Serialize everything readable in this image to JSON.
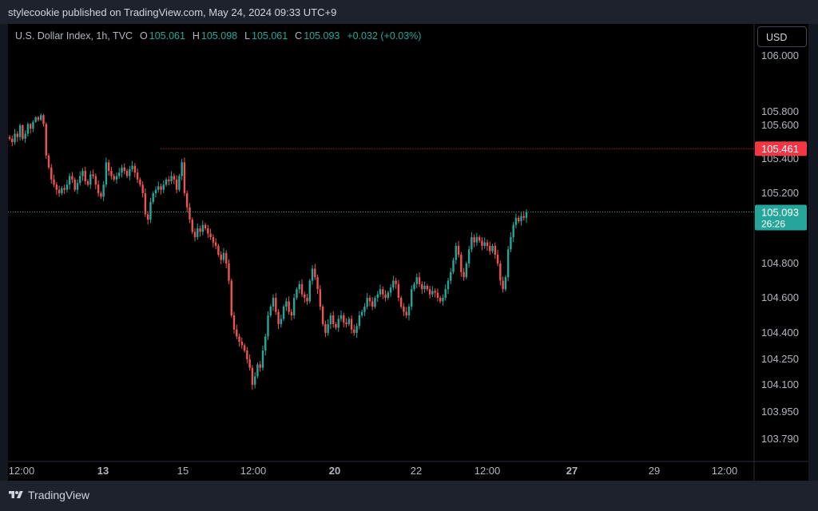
{
  "header": {
    "published": "stylecookie published on TradingView.com, May 24, 2024 09:33 UTC+9"
  },
  "legend": {
    "symbol": "U.S. Dollar Index, 1h, TVC",
    "o_label": "O",
    "o_value": "105.061",
    "h_label": "H",
    "h_value": "105.098",
    "l_label": "L",
    "l_value": "105.061",
    "c_label": "C",
    "c_value": "105.093",
    "change": "+0.032 (+0.03%)"
  },
  "currency_button": "USD",
  "footer": {
    "brand": "TradingView"
  },
  "colors": {
    "up": "#26a69a",
    "down": "#ef5350",
    "hline": "#f23645",
    "current": "#26a69a",
    "axis_text": "#b2b5be"
  },
  "chart_data": {
    "type": "candlestick",
    "symbol": "U.S. Dollar Index",
    "interval": "1h",
    "y_ticks": [
      "106.000",
      "105.800",
      "105.600",
      "105.400",
      "105.200",
      "104.800",
      "104.600",
      "104.400",
      "104.250",
      "104.100",
      "103.950",
      "103.790"
    ],
    "x_ticks": [
      {
        "label": "12:00",
        "bold": false
      },
      {
        "label": "13",
        "bold": true
      },
      {
        "label": "15",
        "bold": false
      },
      {
        "label": "12:00",
        "bold": false
      },
      {
        "label": "20",
        "bold": true
      },
      {
        "label": "22",
        "bold": false
      },
      {
        "label": "12:00",
        "bold": false
      },
      {
        "label": "27",
        "bold": true
      },
      {
        "label": "29",
        "bold": false
      },
      {
        "label": "12:00",
        "bold": false
      }
    ],
    "horizontal_line": {
      "price": 105.461,
      "label": "105.461"
    },
    "current_price": {
      "price": 105.093,
      "label": "105.093",
      "countdown": "26:26"
    },
    "closes": [
      105.52,
      105.5,
      105.55,
      105.53,
      105.6,
      105.52,
      105.55,
      105.62,
      105.58,
      105.65,
      105.72,
      105.68,
      105.75,
      105.62,
      105.42,
      105.35,
      105.28,
      105.25,
      105.22,
      105.2,
      105.23,
      105.22,
      105.25,
      105.3,
      105.28,
      105.22,
      105.26,
      105.3,
      105.33,
      105.27,
      105.25,
      105.31,
      105.3,
      105.25,
      105.2,
      105.18,
      105.25,
      105.38,
      105.33,
      105.3,
      105.28,
      105.3,
      105.32,
      105.35,
      105.33,
      105.3,
      105.34,
      105.36,
      105.32,
      105.28,
      105.25,
      105.2,
      105.08,
      105.05,
      105.15,
      105.2,
      105.22,
      105.24,
      105.22,
      105.25,
      105.28,
      105.27,
      105.3,
      105.28,
      105.22,
      105.3,
      105.38,
      105.2,
      105.12,
      105.05,
      104.98,
      104.95,
      105.0,
      104.98,
      105.02,
      105.0,
      104.97,
      104.95,
      104.92,
      104.9,
      104.85,
      104.82,
      104.86,
      104.8,
      104.7,
      104.5,
      104.42,
      104.38,
      104.35,
      104.33,
      104.3,
      104.25,
      104.2,
      104.1,
      104.15,
      104.22,
      104.2,
      104.3,
      104.38,
      104.5,
      104.55,
      104.6,
      104.52,
      104.45,
      104.48,
      104.55,
      104.58,
      104.52,
      104.5,
      104.6,
      104.65,
      104.68,
      104.62,
      104.6,
      104.58,
      104.7,
      104.77,
      104.72,
      104.65,
      104.55,
      104.45,
      104.4,
      104.45,
      104.5,
      104.45,
      104.43,
      104.48,
      104.5,
      104.46,
      104.45,
      104.48,
      104.42,
      104.4,
      104.44,
      104.5,
      104.52,
      104.55,
      104.6,
      104.58,
      104.55,
      104.6,
      104.62,
      104.65,
      104.62,
      104.6,
      104.63,
      104.66,
      104.7,
      104.68,
      104.6,
      104.55,
      104.52,
      104.5,
      104.55,
      104.65,
      104.68,
      104.72,
      104.68,
      104.65,
      104.67,
      104.65,
      104.62,
      104.64,
      104.63,
      104.6,
      104.58,
      104.6,
      104.65,
      104.7,
      104.75,
      104.82,
      104.9,
      104.85,
      104.75,
      104.72,
      104.8,
      104.88,
      104.95,
      104.92,
      104.95,
      104.93,
      104.9,
      104.92,
      104.9,
      104.87,
      104.9,
      104.85,
      104.8,
      104.7,
      104.65,
      104.72,
      104.88,
      104.95,
      105.02,
      105.06,
      105.04,
      105.07,
      105.06,
      105.093
    ]
  }
}
